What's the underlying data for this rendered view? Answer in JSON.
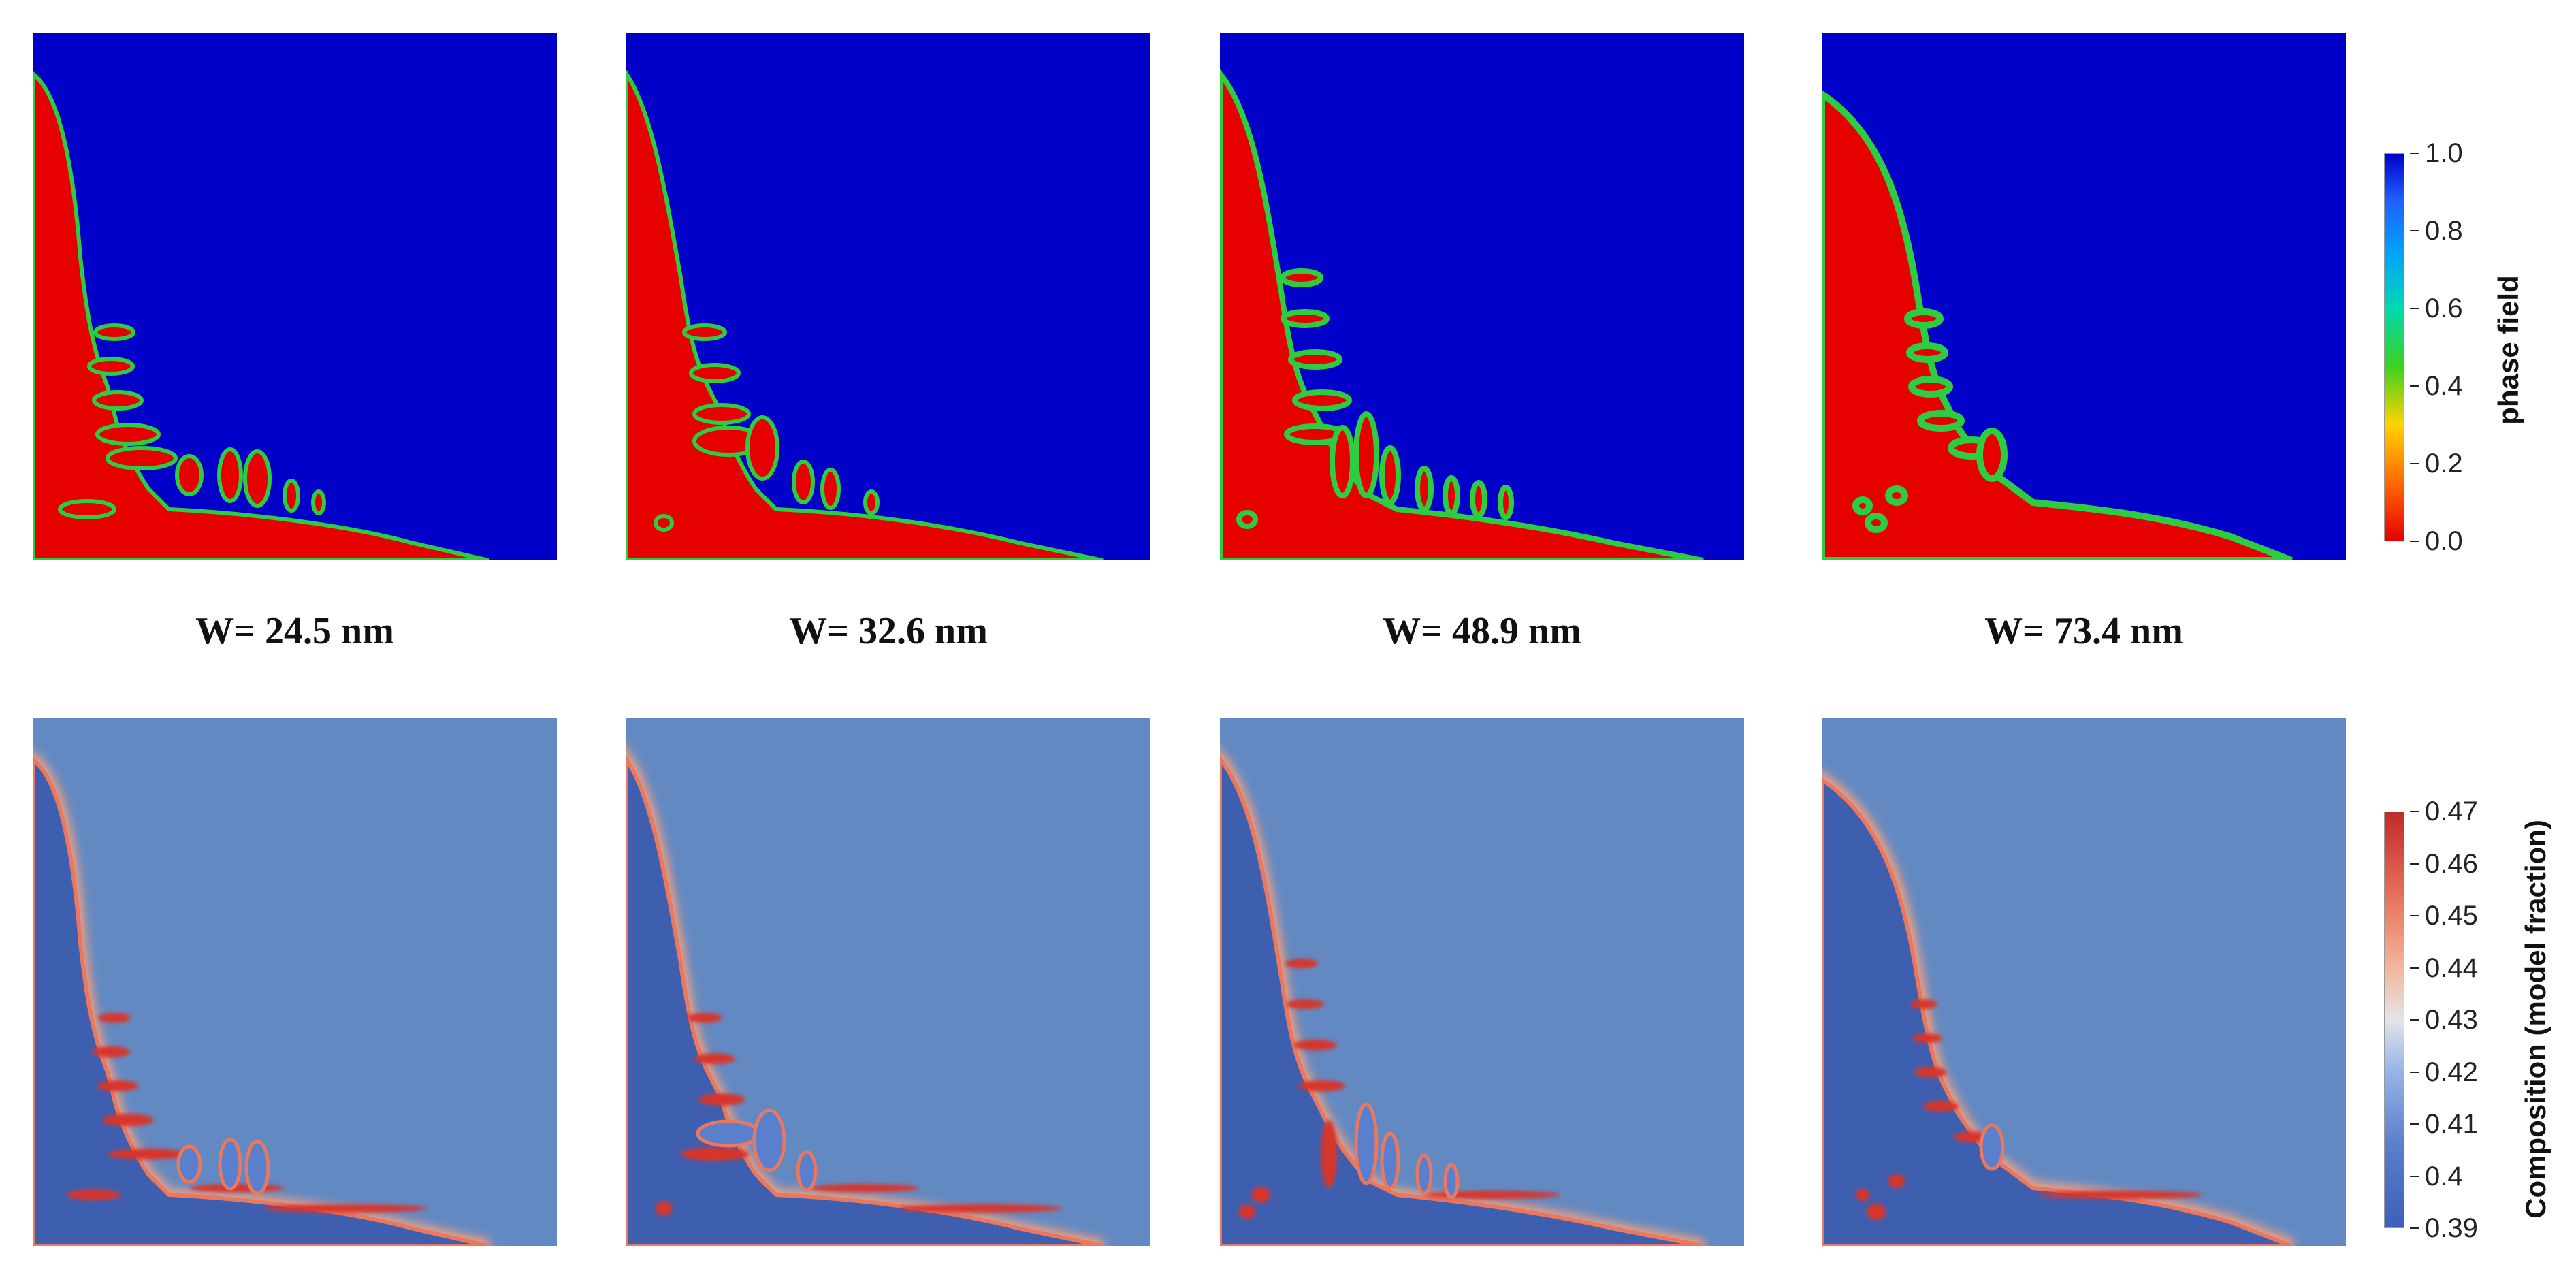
{
  "panel_labels": [
    "W= 24.5 nm",
    "W= 32.6 nm",
    "W= 48.9 nm",
    "W= 73.4 nm"
  ],
  "phase_colorbar": {
    "title": "phase field",
    "ticks": [
      "1.0",
      "0.8",
      "0.6",
      "0.4",
      "0.2",
      "0.0"
    ],
    "range": [
      0.0,
      1.0
    ],
    "colors": {
      "liquid": "#0000c8",
      "solid": "#e60000",
      "interface": "#2ecc40"
    }
  },
  "composition_colorbar": {
    "title": "Composition (model fraction)",
    "ticks": [
      "0.47",
      "0.46",
      "0.45",
      "0.44",
      "0.43",
      "0.42",
      "0.41",
      "0.4",
      "0.39"
    ],
    "range": [
      0.39,
      0.47
    ],
    "colors": {
      "liquid": "#6389c2",
      "solid": "#3e5fb0",
      "enriched": "#d8352a",
      "boundary": "#f0a080"
    }
  }
}
